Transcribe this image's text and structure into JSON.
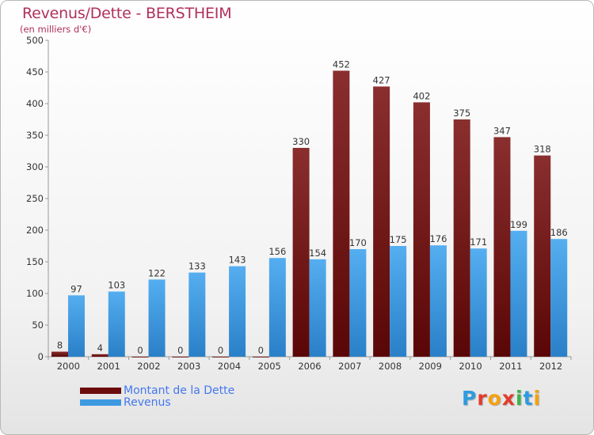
{
  "title": "Revenus/Dette - BERSTHEIM",
  "subtitle": "(en milliers d'€)",
  "legend": [
    {
      "label": "Montant de la Dette",
      "color": "#6b0c0c"
    },
    {
      "label": "Revenus",
      "color": "#3d9ae0"
    }
  ],
  "logo": {
    "letters": [
      "P",
      "r",
      "o",
      "x",
      "i",
      "t",
      "i"
    ],
    "colors": [
      "#2f9be0",
      "#e23c2a",
      "#f5a10d",
      "#e23c2a",
      "#3ab34a",
      "#2f9be0",
      "#f5a10d"
    ]
  },
  "chart_data": {
    "type": "bar",
    "title": "Revenus/Dette - BERSTHEIM",
    "ylabel": "(en milliers d'€)",
    "xlabel": "",
    "ylim": [
      0,
      500
    ],
    "yticks": [
      0,
      50,
      100,
      150,
      200,
      250,
      300,
      350,
      400,
      450,
      500
    ],
    "grid": false,
    "legend_position": "bottom-left",
    "categories": [
      "2000",
      "2001",
      "2002",
      "2003",
      "2004",
      "2005",
      "2006",
      "2007",
      "2008",
      "2009",
      "2010",
      "2011",
      "2012"
    ],
    "series": [
      {
        "name": "Montant de la Dette",
        "color": "#7a1a1a",
        "values": [
          8,
          4,
          0,
          0,
          0,
          0,
          330,
          452,
          427,
          402,
          375,
          347,
          318
        ]
      },
      {
        "name": "Revenus",
        "color": "#3d9ae0",
        "values": [
          97,
          103,
          122,
          133,
          143,
          156,
          154,
          170,
          175,
          176,
          171,
          199,
          186
        ]
      }
    ]
  }
}
